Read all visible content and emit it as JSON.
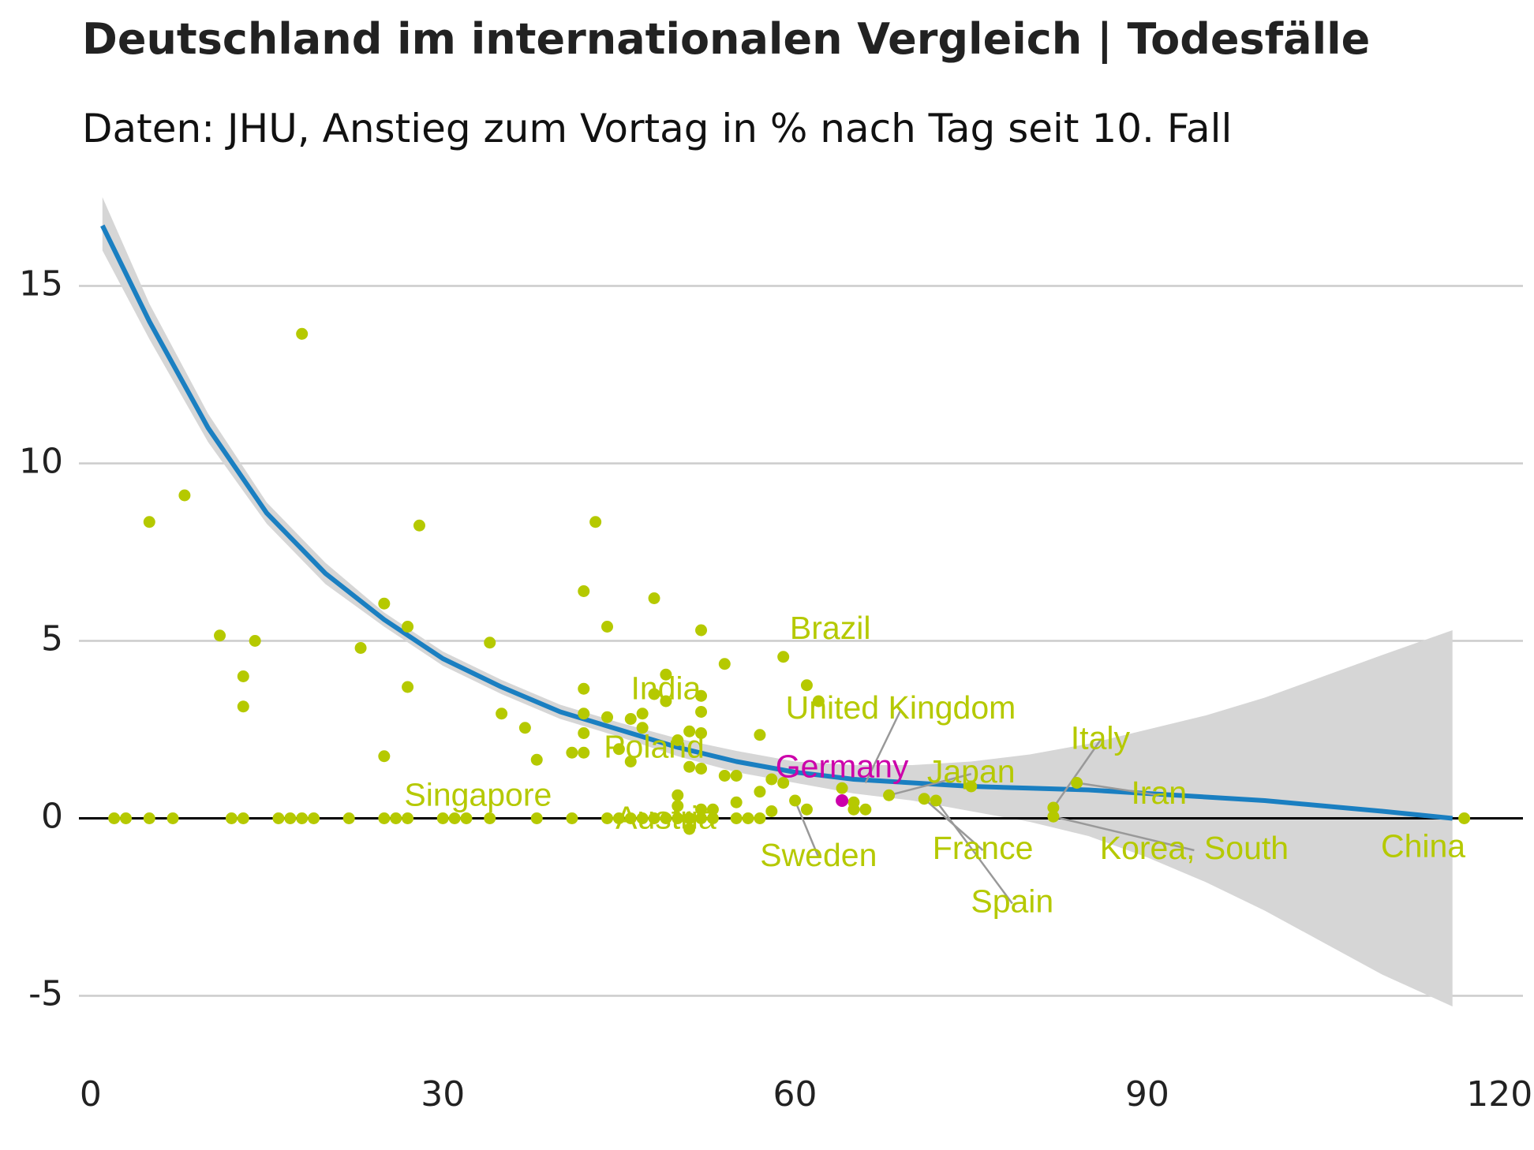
{
  "chart_data": {
    "type": "scatter",
    "title": "Deutschland im internationalen Vergleich | Todesfälle",
    "subtitle": "Daten: JHU, Anstieg zum Vortag in % nach Tag seit 10. Fall",
    "xlabel": "",
    "ylabel": "",
    "xlim": [
      -1,
      122
    ],
    "ylim": [
      -6.5,
      17.5
    ],
    "x_ticks": [
      "0",
      "30",
      "60",
      "90",
      "120"
    ],
    "x_tick_values": [
      0,
      30,
      60,
      90,
      120
    ],
    "y_ticks": [
      "15",
      "10",
      "5",
      "0",
      "-5"
    ],
    "y_tick_values": [
      15,
      10,
      5,
      0,
      -5
    ],
    "grid": "horizontal",
    "colors": {
      "points": "#b5c900",
      "highlight": "#cc00aa",
      "trend": "#1a7fc1",
      "band": "#d6d6d6",
      "grid": "#cccccc",
      "zero": "#000000",
      "leader": "#999999"
    },
    "trend": {
      "name": "",
      "x": [
        1,
        5,
        10,
        15,
        20,
        25,
        30,
        35,
        40,
        45,
        50,
        55,
        60,
        65,
        70,
        75,
        80,
        85,
        90,
        95,
        100,
        105,
        110,
        116
      ],
      "y": [
        16.7,
        14.0,
        11.0,
        8.6,
        6.9,
        5.6,
        4.5,
        3.7,
        3.0,
        2.5,
        2.0,
        1.6,
        1.3,
        1.1,
        1.0,
        0.9,
        0.85,
        0.8,
        0.7,
        0.6,
        0.5,
        0.35,
        0.2,
        0.0
      ],
      "band_upper": [
        17.5,
        14.5,
        11.4,
        8.9,
        7.2,
        5.8,
        4.7,
        3.9,
        3.2,
        2.7,
        2.25,
        1.9,
        1.6,
        1.5,
        1.5,
        1.6,
        1.8,
        2.1,
        2.5,
        2.9,
        3.4,
        4.0,
        4.6,
        5.3
      ],
      "band_lower": [
        16.0,
        13.5,
        10.6,
        8.3,
        6.6,
        5.4,
        4.3,
        3.5,
        2.8,
        2.3,
        1.75,
        1.3,
        1.0,
        0.7,
        0.5,
        0.2,
        -0.1,
        -0.5,
        -1.1,
        -1.8,
        -2.6,
        -3.5,
        -4.4,
        -5.3
      ]
    },
    "points": [
      {
        "x": 2,
        "y": 0
      },
      {
        "x": 3,
        "y": 0
      },
      {
        "x": 5,
        "y": 0
      },
      {
        "x": 7,
        "y": 0
      },
      {
        "x": 5,
        "y": 8.35
      },
      {
        "x": 8,
        "y": 9.1
      },
      {
        "x": 11,
        "y": 5.15
      },
      {
        "x": 12,
        "y": 0
      },
      {
        "x": 13,
        "y": 0
      },
      {
        "x": 13,
        "y": 4.0
      },
      {
        "x": 13,
        "y": 3.15
      },
      {
        "x": 14,
        "y": 5.0
      },
      {
        "x": 16,
        "y": 0
      },
      {
        "x": 17,
        "y": 0
      },
      {
        "x": 18,
        "y": 0
      },
      {
        "x": 19,
        "y": 0
      },
      {
        "x": 18,
        "y": 13.65
      },
      {
        "x": 22,
        "y": 0
      },
      {
        "x": 23,
        "y": 4.8
      },
      {
        "x": 25,
        "y": 6.05
      },
      {
        "x": 25,
        "y": 1.75
      },
      {
        "x": 25,
        "y": 0
      },
      {
        "x": 26,
        "y": 0
      },
      {
        "x": 27,
        "y": 5.4
      },
      {
        "x": 27,
        "y": 3.7
      },
      {
        "x": 27,
        "y": 0
      },
      {
        "x": 28,
        "y": 8.25
      },
      {
        "x": 30,
        "y": 0
      },
      {
        "x": 31,
        "y": 0
      },
      {
        "x": 32,
        "y": 0
      },
      {
        "x": 34,
        "y": 0
      },
      {
        "x": 34,
        "y": 4.95
      },
      {
        "x": 35,
        "y": 2.95
      },
      {
        "x": 37,
        "y": 2.55
      },
      {
        "x": 38,
        "y": 1.65
      },
      {
        "x": 38,
        "y": 0
      },
      {
        "x": 41,
        "y": 1.85
      },
      {
        "x": 41,
        "y": 0
      },
      {
        "x": 42,
        "y": 6.4
      },
      {
        "x": 42,
        "y": 3.65
      },
      {
        "x": 42,
        "y": 2.95
      },
      {
        "x": 42,
        "y": 2.4
      },
      {
        "x": 42,
        "y": 1.85
      },
      {
        "x": 43,
        "y": 8.35
      },
      {
        "x": 44,
        "y": 5.4
      },
      {
        "x": 44,
        "y": 2.85
      },
      {
        "x": 44,
        "y": 0
      },
      {
        "x": 45,
        "y": 1.95
      },
      {
        "x": 45,
        "y": 0
      },
      {
        "x": 46,
        "y": 2.8
      },
      {
        "x": 46,
        "y": 1.6
      },
      {
        "x": 46,
        "y": 0
      },
      {
        "x": 47,
        "y": 2.95
      },
      {
        "x": 47,
        "y": 2.55
      },
      {
        "x": 47,
        "y": 0
      },
      {
        "x": 48,
        "y": 6.2
      },
      {
        "x": 48,
        "y": 3.5
      },
      {
        "x": 48,
        "y": 0
      },
      {
        "x": 49,
        "y": 4.05
      },
      {
        "x": 49,
        "y": 3.3
      },
      {
        "x": 49,
        "y": 0
      },
      {
        "x": 50,
        "y": 2.2
      },
      {
        "x": 50,
        "y": 0.65
      },
      {
        "x": 50,
        "y": 0.35
      },
      {
        "x": 50,
        "y": 0
      },
      {
        "x": 51,
        "y": 2.45
      },
      {
        "x": 51,
        "y": 1.45
      },
      {
        "x": 51,
        "y": 0
      },
      {
        "x": 51,
        "y": -0.3
      },
      {
        "x": 52,
        "y": 5.3
      },
      {
        "x": 52,
        "y": 3.45
      },
      {
        "x": 52,
        "y": 3.0
      },
      {
        "x": 52,
        "y": 2.4
      },
      {
        "x": 52,
        "y": 1.4
      },
      {
        "x": 52,
        "y": 0.25
      },
      {
        "x": 52,
        "y": 0
      },
      {
        "x": 53,
        "y": 0.25
      },
      {
        "x": 53,
        "y": 0
      },
      {
        "x": 54,
        "y": 4.35
      },
      {
        "x": 54,
        "y": 1.2
      },
      {
        "x": 55,
        "y": 1.2
      },
      {
        "x": 55,
        "y": 0.45
      },
      {
        "x": 55,
        "y": 0
      },
      {
        "x": 56,
        "y": 0
      },
      {
        "x": 57,
        "y": 2.35
      },
      {
        "x": 57,
        "y": 0.75
      },
      {
        "x": 57,
        "y": 0
      },
      {
        "x": 58,
        "y": 1.1
      },
      {
        "x": 58,
        "y": 0.2
      },
      {
        "x": 59,
        "y": 4.55
      },
      {
        "x": 59,
        "y": 1.0
      },
      {
        "x": 60,
        "y": 0.5
      },
      {
        "x": 61,
        "y": 3.75
      },
      {
        "x": 61,
        "y": 0.25
      },
      {
        "x": 62,
        "y": 3.3
      },
      {
        "x": 64,
        "y": 0.85
      },
      {
        "x": 65,
        "y": 0.45
      },
      {
        "x": 65,
        "y": 0.25
      },
      {
        "x": 66,
        "y": 0.25
      },
      {
        "x": 68,
        "y": 0.65
      },
      {
        "x": 71,
        "y": 0.55
      },
      {
        "x": 72,
        "y": 0.5
      },
      {
        "x": 75,
        "y": 0.9
      },
      {
        "x": 82,
        "y": 0.3
      },
      {
        "x": 82,
        "y": 0.05
      },
      {
        "x": 84,
        "y": 1.0
      },
      {
        "x": 117,
        "y": 0
      }
    ],
    "highlight_points": [
      {
        "name": "Germany",
        "x": 64,
        "y": 0.5
      }
    ],
    "annotations": [
      {
        "text": "Brazil",
        "x": 59,
        "y": 4.55,
        "lx": 63,
        "ly": 5.3,
        "color": "points",
        "leader": false
      },
      {
        "text": "India",
        "x": 49,
        "y": 4.05,
        "lx": 49,
        "ly": 3.6,
        "color": "points",
        "leader": false
      },
      {
        "text": "United Kingdom",
        "x": 66,
        "y": 1.0,
        "lx": 69,
        "ly": 3.05,
        "color": "points",
        "leader": true
      },
      {
        "text": "Poland",
        "x": 46,
        "y": 1.95,
        "lx": 48,
        "ly": 1.95,
        "color": "points",
        "leader": false
      },
      {
        "text": "Germany",
        "x": 64,
        "y": 0.5,
        "lx": 64,
        "ly": 1.4,
        "color": "highlight",
        "leader": false
      },
      {
        "text": "Japan",
        "x": 68,
        "y": 0.65,
        "lx": 75,
        "ly": 1.25,
        "color": "points",
        "leader": true
      },
      {
        "text": "Italy",
        "x": 82,
        "y": 0.3,
        "lx": 86,
        "ly": 2.2,
        "color": "points",
        "leader": true
      },
      {
        "text": "Iran",
        "x": 84,
        "y": 1.0,
        "lx": 91,
        "ly": 0.65,
        "color": "points",
        "leader": true
      },
      {
        "text": "Singapore",
        "x": 31,
        "y": 0,
        "lx": 33,
        "ly": 0.6,
        "color": "points",
        "leader": false
      },
      {
        "text": "Austria",
        "x": 49,
        "y": 0,
        "lx": 49,
        "ly": -0.05,
        "color": "points",
        "leader": false
      },
      {
        "text": "Sweden",
        "x": 60,
        "y": 0.5,
        "lx": 62,
        "ly": -1.1,
        "color": "points",
        "leader": true
      },
      {
        "text": "France",
        "x": 71,
        "y": 0.55,
        "lx": 76,
        "ly": -0.9,
        "color": "points",
        "leader": true
      },
      {
        "text": "Korea, South",
        "x": 82,
        "y": 0.05,
        "lx": 94,
        "ly": -0.9,
        "color": "points",
        "leader": true
      },
      {
        "text": "China",
        "x": 117,
        "y": 0,
        "lx": 113.5,
        "ly": -0.85,
        "color": "points",
        "leader": false
      },
      {
        "text": "Spain",
        "x": 72,
        "y": 0.5,
        "lx": 78.5,
        "ly": -2.4,
        "color": "points",
        "leader": true
      }
    ]
  }
}
